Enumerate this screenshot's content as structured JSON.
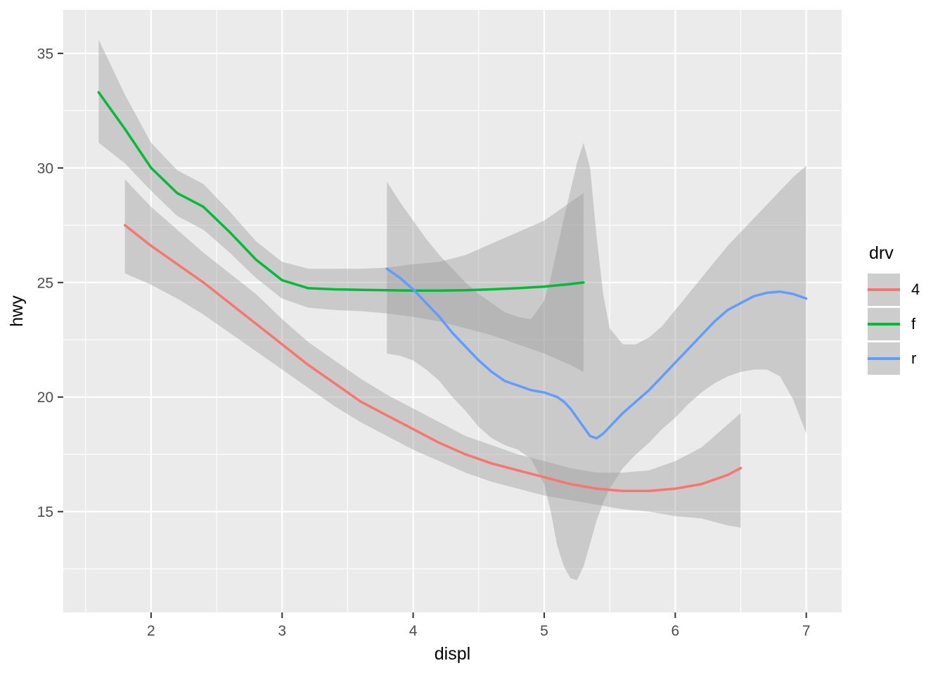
{
  "figure": {
    "background": "#FFFFFF"
  },
  "chart_data": {
    "type": "line",
    "title": "",
    "xlabel": "displ",
    "ylabel": "hwy",
    "xlim": [
      1.33,
      7.27
    ],
    "ylim": [
      10.6,
      36.9
    ],
    "xticks": [
      2,
      3,
      4,
      5,
      6,
      7
    ],
    "yticks": [
      15,
      20,
      25,
      30,
      35
    ],
    "xminor": [
      1.5,
      2.5,
      3.5,
      4.5,
      5.5,
      6.5
    ],
    "yminor": [
      12.5,
      17.5,
      22.5,
      27.5,
      32.5
    ],
    "panel_bg": "#EBEBEB",
    "grid_color": "#FFFFFF",
    "tick_color": "#333333",
    "axis_text_color": "#4D4D4D",
    "ribbon_color": "#999999",
    "ribbon_opacity": 0.4,
    "legend_position": "right",
    "series": [
      {
        "name": "4",
        "color": "#F8766D",
        "x": [
          1.8,
          2.0,
          2.2,
          2.4,
          2.6,
          2.8,
          3.0,
          3.2,
          3.4,
          3.6,
          3.8,
          4.0,
          4.2,
          4.4,
          4.6,
          4.8,
          5.0,
          5.2,
          5.4,
          5.6,
          5.8,
          6.0,
          6.2,
          6.4,
          6.5
        ],
        "y": [
          27.5,
          26.6,
          25.8,
          25.0,
          24.1,
          23.2,
          22.3,
          21.4,
          20.6,
          19.8,
          19.2,
          18.6,
          18.0,
          17.5,
          17.1,
          16.8,
          16.5,
          16.2,
          16.0,
          15.9,
          15.9,
          16.0,
          16.2,
          16.6,
          16.9
        ],
        "low": [
          25.4,
          24.9,
          24.3,
          23.6,
          22.8,
          22.0,
          21.2,
          20.4,
          19.6,
          18.9,
          18.3,
          17.7,
          17.2,
          16.7,
          16.3,
          16.0,
          15.7,
          15.5,
          15.3,
          15.1,
          15.0,
          14.8,
          14.7,
          14.4,
          14.3
        ],
        "high": [
          29.5,
          28.3,
          27.3,
          26.3,
          25.4,
          24.5,
          23.4,
          22.4,
          21.6,
          20.8,
          20.1,
          19.5,
          18.9,
          18.3,
          17.9,
          17.5,
          17.2,
          16.9,
          16.7,
          16.7,
          16.8,
          17.2,
          17.8,
          18.8,
          19.3
        ]
      },
      {
        "name": "f",
        "color": "#00BA38",
        "x": [
          1.6,
          1.8,
          2.0,
          2.2,
          2.4,
          2.6,
          2.8,
          3.0,
          3.2,
          3.4,
          3.6,
          3.8,
          4.0,
          4.2,
          4.4,
          4.6,
          4.8,
          5.0,
          5.2,
          5.3
        ],
        "y": [
          33.3,
          31.7,
          30.0,
          28.9,
          28.3,
          27.2,
          26.0,
          25.1,
          24.75,
          24.7,
          24.68,
          24.66,
          24.65,
          24.65,
          24.66,
          24.7,
          24.75,
          24.82,
          24.93,
          25.0
        ],
        "low": [
          31.1,
          30.2,
          29.0,
          27.9,
          27.3,
          26.3,
          25.2,
          24.3,
          23.9,
          23.8,
          23.75,
          23.65,
          23.5,
          23.3,
          23.0,
          22.7,
          22.3,
          21.9,
          21.4,
          21.1
        ],
        "high": [
          35.6,
          33.2,
          31.1,
          29.9,
          29.3,
          28.1,
          26.8,
          25.9,
          25.6,
          25.6,
          25.6,
          25.65,
          25.8,
          25.9,
          26.2,
          26.7,
          27.2,
          27.7,
          28.5,
          28.9
        ]
      },
      {
        "name": "r",
        "color": "#619CFF",
        "x": [
          3.8,
          3.9,
          4.0,
          4.1,
          4.2,
          4.3,
          4.4,
          4.5,
          4.6,
          4.7,
          4.8,
          4.9,
          5.0,
          5.05,
          5.1,
          5.15,
          5.2,
          5.25,
          5.3,
          5.35,
          5.4,
          5.45,
          5.5,
          5.6,
          5.7,
          5.8,
          5.9,
          6.0,
          6.1,
          6.2,
          6.3,
          6.4,
          6.5,
          6.6,
          6.7,
          6.8,
          6.9,
          7.0
        ],
        "y": [
          25.6,
          25.2,
          24.7,
          24.1,
          23.5,
          22.8,
          22.2,
          21.6,
          21.1,
          20.7,
          20.5,
          20.3,
          20.2,
          20.1,
          20.0,
          19.8,
          19.5,
          19.1,
          18.7,
          18.3,
          18.2,
          18.4,
          18.7,
          19.3,
          19.8,
          20.3,
          20.9,
          21.5,
          22.1,
          22.7,
          23.3,
          23.8,
          24.1,
          24.4,
          24.55,
          24.6,
          24.5,
          24.3
        ],
        "low": [
          21.9,
          21.8,
          21.6,
          21.2,
          20.7,
          20.0,
          19.4,
          18.7,
          18.2,
          17.9,
          17.7,
          17.3,
          16.2,
          15.0,
          13.5,
          12.6,
          12.1,
          12.0,
          12.6,
          13.6,
          14.6,
          15.4,
          16.0,
          16.9,
          17.5,
          18.0,
          18.6,
          19.1,
          19.7,
          20.2,
          20.6,
          20.9,
          21.1,
          21.2,
          21.2,
          20.9,
          19.9,
          18.4
        ],
        "high": [
          29.4,
          28.5,
          27.7,
          26.9,
          26.2,
          25.6,
          25.0,
          24.5,
          24.1,
          23.7,
          23.5,
          23.4,
          24.2,
          25.2,
          26.5,
          27.8,
          29.0,
          30.2,
          31.1,
          30.0,
          27.0,
          24.5,
          23.0,
          22.3,
          22.3,
          22.6,
          23.1,
          23.8,
          24.5,
          25.2,
          25.9,
          26.6,
          27.2,
          27.8,
          28.4,
          29.0,
          29.6,
          30.1
        ]
      }
    ]
  },
  "legend": {
    "title": "drv",
    "key_bg": "#CDCDCD",
    "items": [
      {
        "label": "4",
        "color": "#F8766D"
      },
      {
        "label": "f",
        "color": "#00BA38"
      },
      {
        "label": "r",
        "color": "#619CFF"
      }
    ]
  }
}
